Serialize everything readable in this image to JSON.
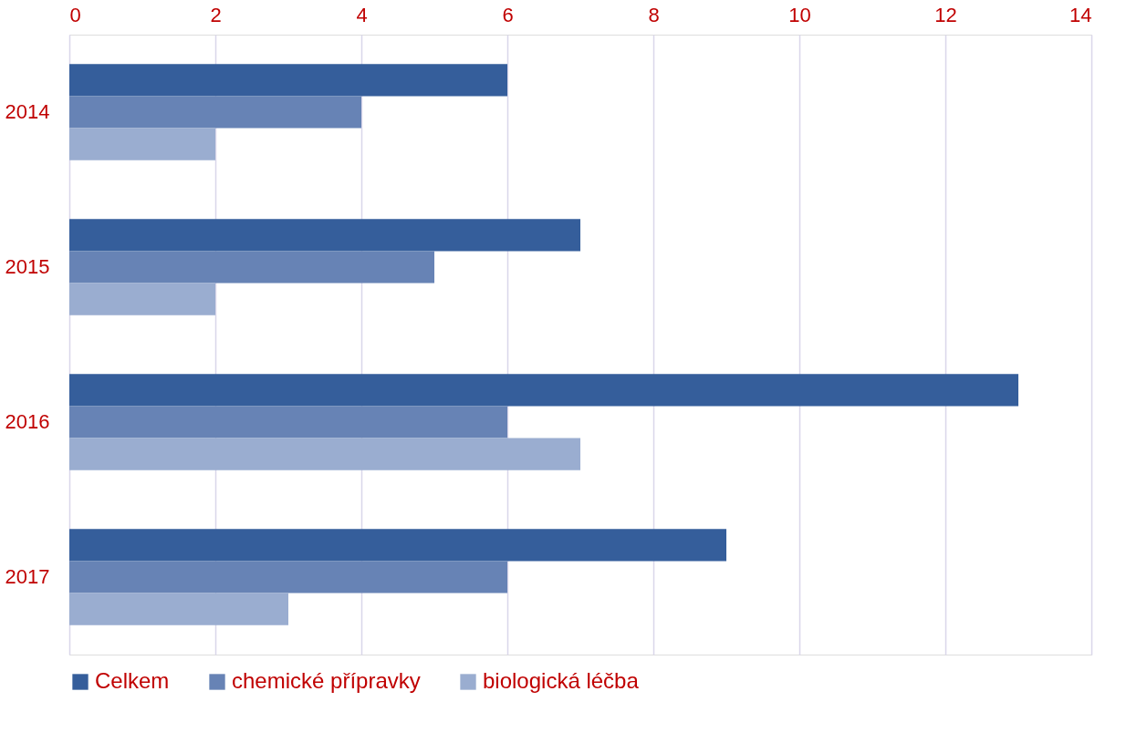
{
  "chart_data": {
    "type": "bar",
    "orientation": "horizontal",
    "categories": [
      "2014",
      "2015",
      "2016",
      "2017"
    ],
    "series": [
      {
        "name": "Celkem",
        "color": "#355e9b",
        "values": [
          6,
          7,
          13,
          9
        ]
      },
      {
        "name": "chemické přípravky",
        "color": "#6783b5",
        "values": [
          4,
          5,
          6,
          6
        ]
      },
      {
        "name": "biologická léčba",
        "color": "#9aadd0",
        "values": [
          2,
          2,
          7,
          3
        ]
      }
    ],
    "xlim": [
      0,
      14
    ],
    "xticks": [
      0,
      2,
      4,
      6,
      8,
      10,
      12,
      14
    ],
    "grid": "x",
    "legend": "bottom"
  }
}
